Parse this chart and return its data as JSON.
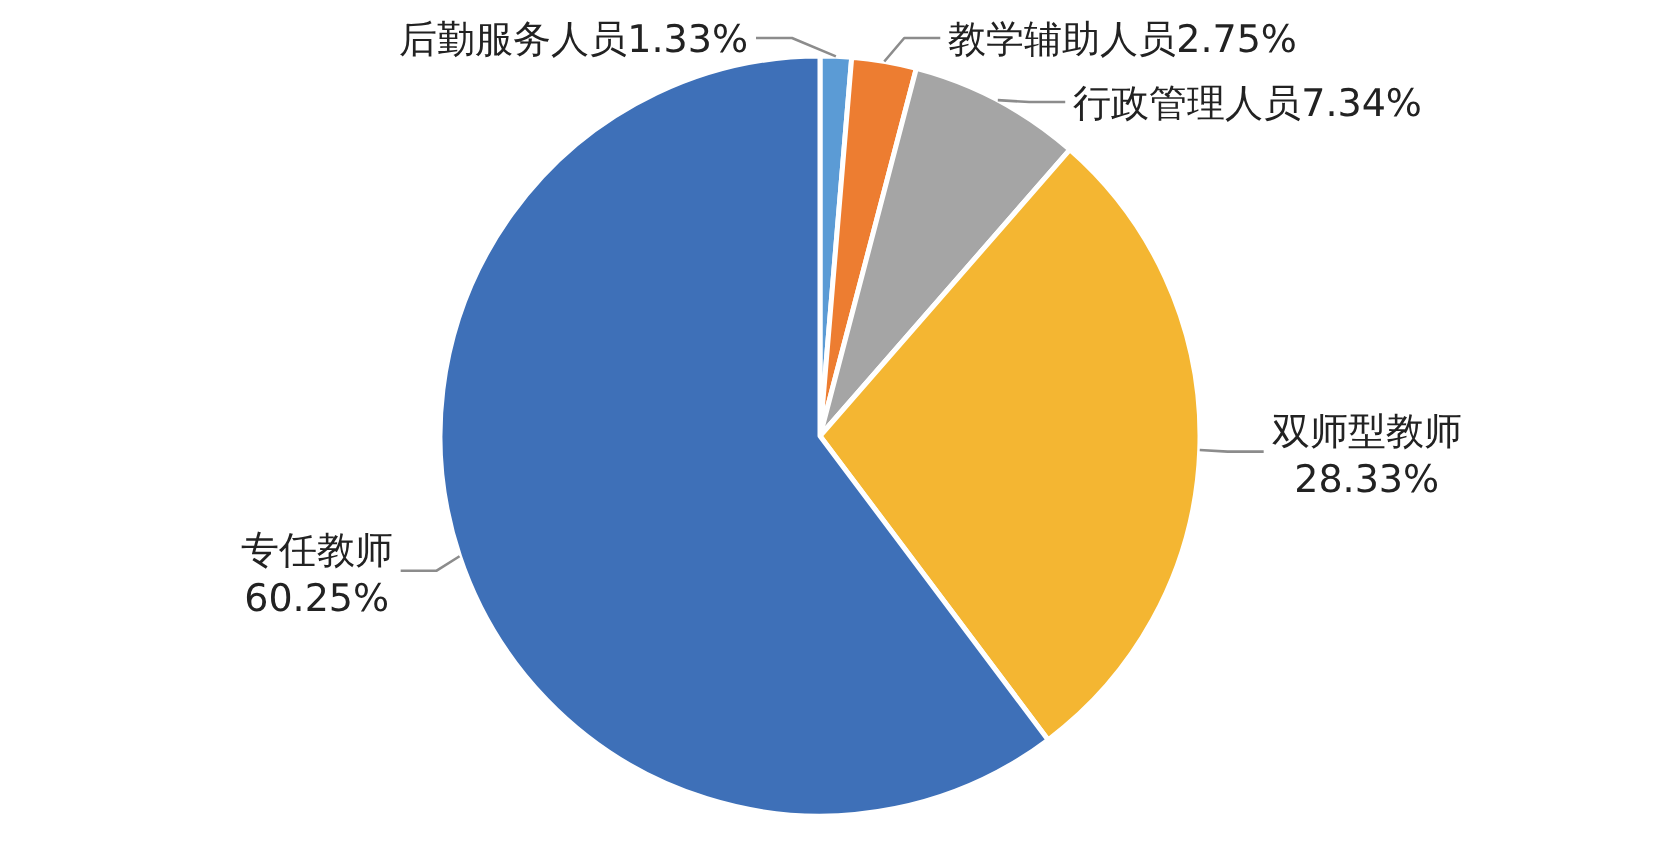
{
  "chart_data": {
    "type": "pie",
    "categories": [
      "后勤服务人员",
      "教学辅助人员",
      "行政管理人员",
      "双师型教师",
      "专任教师"
    ],
    "values": [
      1.33,
      2.75,
      7.34,
      28.33,
      60.25
    ],
    "value_labels": [
      "1.33%",
      "2.75%",
      "7.34%",
      "28.33%",
      "60.25%"
    ],
    "colors": [
      "#5b9bd5",
      "#ed7d31",
      "#a5a5a5",
      "#f4b632",
      "#3e70b8"
    ]
  }
}
